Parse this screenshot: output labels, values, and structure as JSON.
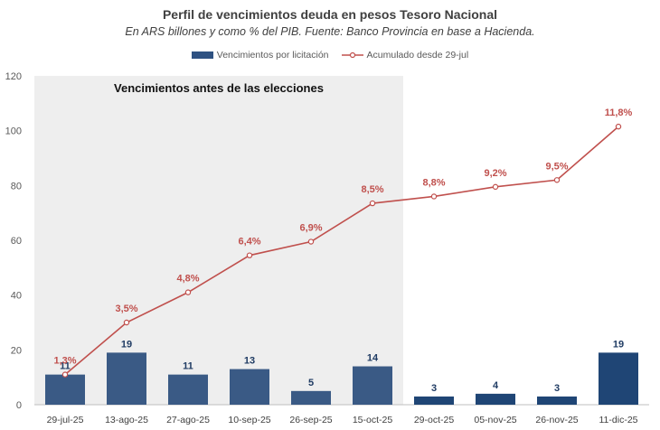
{
  "title": "Perfil de vencimientos deuda en pesos Tesoro Nacional",
  "subtitle": "En ARS billones y como % del PIB. Fuente: Banco Provincia en base a Hacienda.",
  "legend": {
    "bars_label": "Vencimientos por licitación",
    "line_label": "Acumulado desde 29-jul"
  },
  "annotation": "Vencimientos antes de las elecciones",
  "colors": {
    "bar_before": "#3a5a85",
    "bar_after": "#1f4575",
    "bar_label": "#1f3b63",
    "line": "#c0504d",
    "shade": "#eeeeee"
  },
  "chart_data": {
    "type": "bar",
    "categories": [
      "29-jul-25",
      "13-ago-25",
      "27-ago-25",
      "10-sep-25",
      "26-sep-25",
      "15-oct-25",
      "29-oct-25",
      "05-nov-25",
      "26-nov-25",
      "11-dic-25"
    ],
    "series": [
      {
        "name": "Vencimientos por licitación",
        "type": "bar",
        "values": [
          11,
          19,
          11,
          13,
          5,
          14,
          3,
          4,
          3,
          19
        ],
        "labels": [
          "11",
          "19",
          "11",
          "13",
          "5",
          "14",
          "3",
          "4",
          "3",
          "19"
        ]
      },
      {
        "name": "Acumulado desde 29-jul",
        "type": "line",
        "values": [
          11,
          30,
          41,
          54.5,
          59.5,
          73.5,
          76,
          79.5,
          82,
          101.5
        ],
        "labels": [
          "1,3%",
          "3,5%",
          "4,8%",
          "6,4%",
          "6,9%",
          "8,5%",
          "8,8%",
          "9,2%",
          "9,5%",
          "11,8%"
        ]
      }
    ],
    "ylim": [
      0,
      120
    ],
    "yticks": [
      0,
      20,
      40,
      60,
      80,
      100,
      120
    ],
    "shaded_categories_before_elections": 6,
    "grid": false,
    "legend_position": "top"
  }
}
